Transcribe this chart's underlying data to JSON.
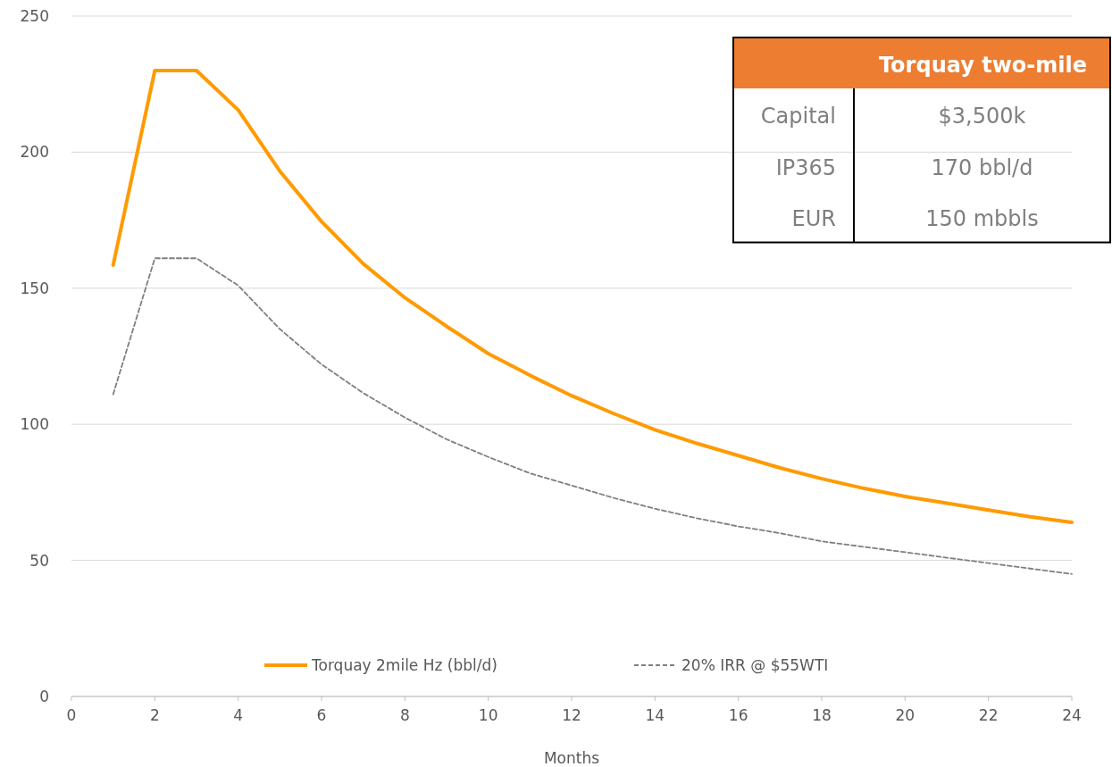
{
  "chart_data": {
    "type": "line",
    "xlabel": "Months",
    "xlim": [
      0,
      24
    ],
    "xticks": [
      0,
      2,
      4,
      6,
      8,
      10,
      12,
      14,
      16,
      18,
      20,
      22,
      24
    ],
    "ylim": [
      0,
      250
    ],
    "yticks": [
      0,
      50,
      100,
      150,
      200,
      250
    ],
    "grid": "y",
    "legend": "bottom",
    "marker": "none",
    "x": [
      1,
      2,
      3,
      4,
      5,
      6,
      7,
      8,
      9,
      10,
      11,
      12,
      13,
      14,
      15,
      16,
      17,
      18,
      19,
      20,
      21,
      22,
      23,
      24
    ],
    "series": [
      {
        "name": "Torquay 2mile Hz (bbl/d)",
        "color": "#ff9a00",
        "line_style": "solid",
        "values": [
          158.5,
          230,
          230,
          215.5,
          193,
          174.5,
          159,
          146.5,
          136,
          126,
          118,
          110.5,
          104,
          98,
          93,
          88.5,
          84,
          80,
          76.5,
          73.5,
          71,
          68.5,
          66,
          64
        ]
      },
      {
        "name": "20% IRR @ $55WTI",
        "color": "#7f7f7f",
        "line_style": "dashed",
        "values": [
          111,
          161,
          161,
          151,
          135,
          122,
          111.5,
          102.5,
          94.5,
          88,
          82,
          77.5,
          73,
          69,
          65.5,
          62.5,
          60,
          57,
          55,
          53,
          51,
          49,
          47,
          45
        ]
      }
    ],
    "annotations": [
      "Torquay two-mile",
      "Capital",
      "$3,500k",
      "IP365",
      "170 bbl/d",
      "EUR",
      "150 mbbls"
    ]
  }
}
